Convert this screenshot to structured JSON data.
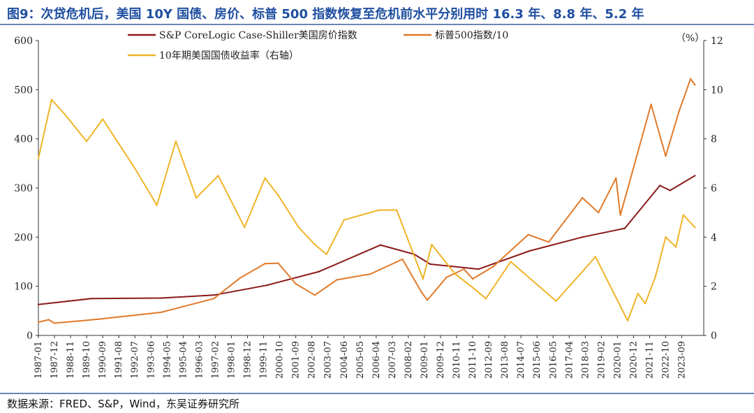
{
  "title": "图9：次贷危机后，美国 10Y 国债、房价、标普 500 指数恢复至危机前水平分别用时 16.3 年、8.8 年、5.2 年",
  "source": "数据来源：FRED、S&P，Wind，东吴证券研究所",
  "colors": {
    "title": "#1f4fa0",
    "hpi": "#8b1a1a",
    "sp": "#e07a2a",
    "bond": "#f0b428"
  },
  "chart_data": {
    "type": "line",
    "unit_right": "（%）",
    "left_axis": {
      "ylim": [
        0,
        600
      ],
      "ticks": [
        0,
        100,
        200,
        300,
        400,
        500,
        600
      ]
    },
    "right_axis": {
      "ylim": [
        0,
        12
      ],
      "ticks": [
        0,
        2,
        4,
        6,
        8,
        10,
        12
      ]
    },
    "xlim": [
      "1987-01",
      "2024-12"
    ],
    "x_ticks": [
      "1987-01",
      "1987-12",
      "1988-11",
      "1989-10",
      "1990-09",
      "1991-08",
      "1992-07",
      "1993-06",
      "1994-05",
      "1995-04",
      "1996-03",
      "1997-02",
      "1998-01",
      "1998-12",
      "1999-11",
      "2000-10",
      "2001-09",
      "2002-08",
      "2003-07",
      "2004-06",
      "2005-05",
      "2006-04",
      "2007-03",
      "2008-02",
      "2009-01",
      "2009-12",
      "2010-11",
      "2011-10",
      "2012-09",
      "2013-08",
      "2014-07",
      "2015-06",
      "2016-05",
      "2017-04",
      "2018-03",
      "2019-02",
      "2020-01",
      "2020-12",
      "2021-11",
      "2022-10",
      "2023-09"
    ],
    "series": [
      {
        "name": "S&P CoreLogic Case-Shiller美国房价指数",
        "axis": "left",
        "color": "#8b1a1a",
        "x": [
          "1987-01",
          "1990-01",
          "1994-01",
          "1997-01",
          "2000-01",
          "2003-01",
          "2006-07",
          "2008-06",
          "2009-05",
          "2012-02",
          "2015-01",
          "2018-01",
          "2020-06",
          "2022-06",
          "2023-01",
          "2024-06"
        ],
        "values": [
          63,
          75,
          76,
          82,
          102,
          130,
          184,
          165,
          145,
          135,
          172,
          200,
          218,
          305,
          295,
          325
        ]
      },
      {
        "name": "标普500指数/10",
        "axis": "left",
        "color": "#e07a2a",
        "x": [
          "1987-01",
          "1987-08",
          "1987-12",
          "1990-06",
          "1994-01",
          "1997-01",
          "1998-07",
          "1999-12",
          "2000-09",
          "2001-09",
          "2002-10",
          "2004-01",
          "2005-12",
          "2007-10",
          "2008-11",
          "2009-03",
          "2010-04",
          "2011-04",
          "2011-10",
          "2012-12",
          "2014-12",
          "2016-02",
          "2018-01",
          "2018-12",
          "2019-12",
          "2020-03",
          "2021-12",
          "2022-10",
          "2023-07",
          "2024-03",
          "2024-06"
        ],
        "values": [
          27,
          32,
          25,
          33,
          47,
          75,
          117,
          146,
          147,
          105,
          82,
          113,
          125,
          155,
          88,
          72,
          118,
          135,
          115,
          140,
          205,
          190,
          280,
          250,
          320,
          245,
          470,
          365,
          455,
          522,
          510
        ]
      },
      {
        "name": "10年期美国国债收益率（右轴）",
        "axis": "right",
        "color": "#f0b428",
        "x": [
          "1987-01",
          "1987-10",
          "1988-07",
          "1989-10",
          "1990-09",
          "1991-08",
          "1992-07",
          "1993-10",
          "1994-11",
          "1996-01",
          "1997-04",
          "1998-10",
          "1999-12",
          "2000-09",
          "2001-11",
          "2002-10",
          "2003-06",
          "2004-06",
          "2006-06",
          "2007-06",
          "2008-12",
          "2009-06",
          "2010-10",
          "2011-09",
          "2012-07",
          "2013-12",
          "2016-07",
          "2018-10",
          "2020-08",
          "2021-03",
          "2021-08",
          "2022-03",
          "2022-10",
          "2023-05",
          "2023-10",
          "2024-06"
        ],
        "values": [
          7.2,
          9.6,
          9.0,
          7.9,
          8.8,
          7.8,
          6.8,
          5.3,
          7.9,
          5.6,
          6.5,
          4.4,
          6.4,
          5.7,
          4.4,
          3.7,
          3.3,
          4.7,
          5.1,
          5.1,
          2.3,
          3.7,
          2.5,
          2.0,
          1.5,
          3.0,
          1.4,
          3.2,
          0.6,
          1.7,
          1.3,
          2.4,
          4.0,
          3.6,
          4.9,
          4.4
        ]
      }
    ],
    "legend": [
      "S&P CoreLogic Case-Shiller美国房价指数",
      "标普500指数/10",
      "10年期美国国债收益率（右轴）"
    ]
  }
}
